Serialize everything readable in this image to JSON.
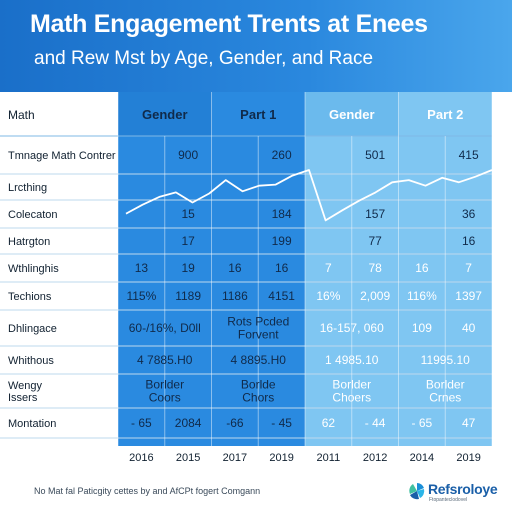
{
  "title": "Math Engagement Trents at Enees",
  "subtitle": "and Rew Mst by Age, Gender, and Race",
  "footer_note": "No Mat fal Paticgity cettes by and AfCPt fogert Comgann",
  "logo": {
    "name": "Refsroloye",
    "tagline": "Ftopanteclodovel",
    "icon": "fan-logo-icon"
  },
  "colors": {
    "header": "#1a6fc9",
    "dark_panel": "#2a8ae0",
    "light_panel": "#7fc6f2",
    "line": "#ffffff"
  },
  "chart_data": {
    "type": "table",
    "group_headers": [
      {
        "label": "Gender"
      },
      {
        "label": "Part 1"
      },
      {
        "label": "Gender"
      },
      {
        "label": "Part 2"
      }
    ],
    "rows": [
      {
        "label": "Tmnage Math Contrer",
        "cells": [
          {
            "text": "900",
            "col": 1
          },
          {
            "text": "260",
            "col": 3
          },
          {
            "text": "501",
            "col": 5
          },
          {
            "text": "415",
            "col": 7
          }
        ]
      },
      {
        "label": "Lrcthing",
        "cells": []
      },
      {
        "label": "Colecaton",
        "cells": [
          {
            "text": "15",
            "col": 1
          },
          {
            "text": "184",
            "col": 3
          },
          {
            "text": "157",
            "col": 5
          },
          {
            "text": "36",
            "col": 7
          }
        ]
      },
      {
        "label": "Hatrgton",
        "cells": [
          {
            "text": "17",
            "col": 1
          },
          {
            "text": "199",
            "col": 3
          },
          {
            "text": "77",
            "col": 5
          },
          {
            "text": "16",
            "col": 7
          }
        ]
      },
      {
        "label": "Wthlinghis",
        "cells": [
          {
            "text": "13",
            "col": 0
          },
          {
            "text": "19",
            "col": 1
          },
          {
            "text": "16",
            "col": 2
          },
          {
            "text": "16",
            "col": 3
          },
          {
            "text": "7",
            "col": 4
          },
          {
            "text": "78",
            "col": 5
          },
          {
            "text": "16",
            "col": 6
          },
          {
            "text": "7",
            "col": 7
          }
        ]
      },
      {
        "label": "Techions",
        "cells": [
          {
            "text": "115%",
            "col": 0
          },
          {
            "text": "1189",
            "col": 1
          },
          {
            "text": "1186",
            "col": 2
          },
          {
            "text": "4151",
            "col": 3
          },
          {
            "text": "16%",
            "col": 4
          },
          {
            "text": "2,009",
            "col": 5
          },
          {
            "text": "116%",
            "col": 6
          },
          {
            "text": "1397",
            "col": 7
          }
        ]
      },
      {
        "label": "Dhlingace",
        "cells": [
          {
            "text": "60-/16%, D0ll",
            "col": 0,
            "span": 2
          },
          {
            "text": "Rots Pcded\nForvent",
            "col": 2,
            "span": 2
          },
          {
            "text": "16-157, 060",
            "col": 4,
            "span": 2
          },
          {
            "text": "109",
            "col": 6
          },
          {
            "text": "40",
            "col": 7
          }
        ]
      },
      {
        "label": "Whithous",
        "cells": [
          {
            "text": "4 7885.H0",
            "col": 0,
            "span": 2
          },
          {
            "text": "4 8895.H0",
            "col": 2,
            "span": 2
          },
          {
            "text": "1 4985.10",
            "col": 4,
            "span": 2
          },
          {
            "text": "11995.10",
            "col": 6,
            "span": 2
          }
        ]
      },
      {
        "label": "Wengy\nIssers",
        "cells": [
          {
            "text": "Borlder\nCoors",
            "col": 0,
            "span": 2
          },
          {
            "text": "Borlde\nChors",
            "col": 2,
            "span": 2
          },
          {
            "text": "Borlder\nChoers",
            "col": 4,
            "span": 2
          },
          {
            "text": "Borlder\nCrnes",
            "col": 6,
            "span": 2
          }
        ]
      },
      {
        "label": "Montation",
        "cells": [
          {
            "text": "- 65",
            "col": 0
          },
          {
            "text": "2084",
            "col": 1
          },
          {
            "text": "-66",
            "col": 2
          },
          {
            "text": "- 45",
            "col": 3
          },
          {
            "text": "62",
            "col": 4
          },
          {
            "text": "- 44",
            "col": 5
          },
          {
            "text": "- 65",
            "col": 6
          },
          {
            "text": "47",
            "col": 7
          }
        ]
      }
    ],
    "corner_label": "Math",
    "x_labels": [
      "2016",
      "2015",
      "2017",
      "2019",
      "2011",
      "2012",
      "2014",
      "2019"
    ],
    "trend_series": [
      {
        "values": [
          0.22,
          0.38,
          0.52,
          0.6,
          0.42,
          0.58,
          0.82,
          0.62,
          0.72,
          0.74,
          0.9,
          1.0,
          0.1,
          0.28,
          0.45,
          0.6,
          0.78,
          0.82,
          0.72,
          0.86,
          0.78,
          0.88,
          1.0
        ]
      }
    ],
    "grid": true
  }
}
